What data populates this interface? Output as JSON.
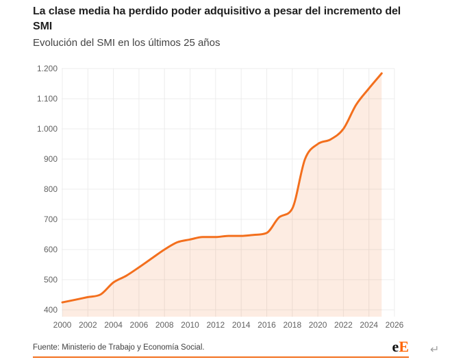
{
  "header": {
    "title": "La clase media ha perdido poder adquisitivo a pesar del incremento del SMI",
    "subtitle": "Evolución del SMI en los últimos 25 años"
  },
  "footer": {
    "source": "Fuente: Ministerio de Trabajo y Economía Social.",
    "logo_e": "e",
    "logo_E": "E",
    "return_symbol": "↵"
  },
  "colors": {
    "line": "#f36f1d",
    "fill": "rgba(243,111,29,0.13)",
    "grid": "#ececec",
    "axis_text": "#616161",
    "rule": "#f36f1d",
    "logo_orange": "#ff6400"
  },
  "chart_data": {
    "type": "area",
    "title": "Evolución del SMI en los últimos 25 años",
    "xlabel": "",
    "ylabel": "",
    "x": [
      2000,
      2001,
      2002,
      2003,
      2004,
      2005,
      2006,
      2007,
      2008,
      2009,
      2010,
      2011,
      2012,
      2013,
      2014,
      2015,
      2016,
      2017,
      2018,
      2019,
      2020,
      2021,
      2022,
      2023,
      2024,
      2025
    ],
    "values": [
      424.8,
      433.45,
      442.2,
      451.2,
      490.8,
      513,
      540.9,
      570.6,
      600,
      624,
      633.3,
      641.4,
      641.4,
      645.3,
      645.3,
      648.6,
      655.2,
      707.7,
      735.9,
      900,
      950,
      965,
      1000,
      1080,
      1134,
      1184
    ],
    "xlim": [
      2000,
      2026
    ],
    "ylim": [
      400,
      1200
    ],
    "grid": true,
    "legend": false,
    "y_ticks": {
      "values": [
        400,
        500,
        600,
        700,
        800,
        900,
        1000,
        1100,
        1200
      ],
      "labels": [
        "400",
        "500",
        "600",
        "700",
        "800",
        "900",
        "1.000",
        "1.100",
        "1.200"
      ]
    },
    "x_ticks": {
      "values": [
        2000,
        2002,
        2004,
        2006,
        2008,
        2010,
        2012,
        2014,
        2016,
        2018,
        2020,
        2022,
        2024,
        2026
      ],
      "labels": [
        "2000",
        "2002",
        "2004",
        "2006",
        "2008",
        "2010",
        "2012",
        "2014",
        "2016",
        "2018",
        "2020",
        "2022",
        "2024",
        "2026"
      ]
    }
  }
}
